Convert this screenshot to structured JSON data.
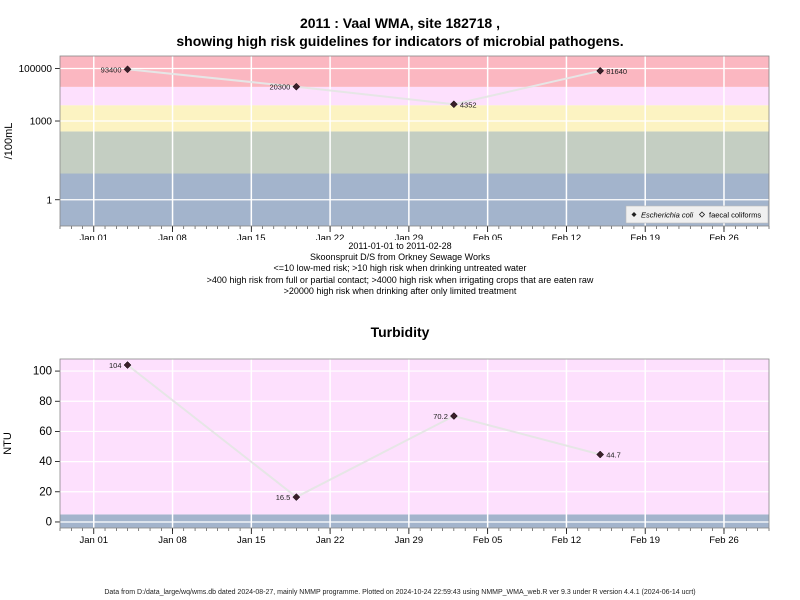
{
  "title": {
    "line1": "2011 : Vaal WMA, site 182718 ,",
    "line2": "showing high risk guidelines for indicators of microbial pathogens."
  },
  "info": {
    "date_range": "2011-01-01 to 2011-02-28",
    "site_name": "Skoonspruit D/S from Orkney Sewage Works",
    "risk_lines": [
      "<=10 low-med risk; >10 high risk when drinking untreated water",
      ">400 high risk from full or partial contact; >4000 high risk when irrigating crops that are eaten raw",
      ">20000 high risk when drinking after only limited treatment"
    ]
  },
  "footer": "Data from D:/data_large/wq/wms.db dated 2024-08-27, mainly NMMP programme. Plotted on 2024-10-24 22:59:43 using NMMP_WMA_web.R ver 9.3 under R version 4.4.1 (2024-06-14 ucrt)",
  "colors": {
    "grey_blue": "#a3b4cc",
    "grey_green": "#c4cec2",
    "yellow": "#fcf3c2",
    "pink_light": "#fde0fd",
    "red": "#fbb7c1",
    "line": "#e6e6e6",
    "grid": "#ffffff"
  },
  "chart_data": [
    {
      "type": "line",
      "title": "",
      "xlabel": "",
      "ylabel": "/100mL",
      "y_scale": "log10",
      "ylim": [
        0.1,
        300000
      ],
      "xlim": [
        "2010-12-29",
        "2011-03-02"
      ],
      "x_ticks": [
        "Jan 01",
        "Jan 08",
        "Jan 15",
        "Jan 22",
        "Jan 29",
        "Feb 05",
        "Feb 12",
        "Feb 19",
        "Feb 26"
      ],
      "y_ticks": [
        "1",
        "1000",
        "100000"
      ],
      "risk_bands": [
        {
          "from": 0.1,
          "to": 10,
          "color": "grey_blue"
        },
        {
          "from": 10,
          "to": 400,
          "color": "grey_green"
        },
        {
          "from": 400,
          "to": 4000,
          "color": "yellow"
        },
        {
          "from": 4000,
          "to": 20000,
          "color": "pink_light"
        },
        {
          "from": 20000,
          "to": 300000,
          "color": "red"
        }
      ],
      "legend_position": "bottom-right",
      "legend": [
        "Escherichia coli",
        "faecal coliforms"
      ],
      "series": [
        {
          "name": "Escherichia coli",
          "x": [
            "2011-01-04",
            "2011-01-19",
            "2011-02-02",
            "2011-02-15"
          ],
          "values": [
            93400,
            20300,
            4352,
            81640
          ],
          "labels": [
            "93400",
            "20300",
            "4352",
            "81640"
          ],
          "label_side": [
            "left",
            "left",
            "right",
            "right"
          ]
        }
      ]
    },
    {
      "type": "line",
      "title": "Turbidity",
      "xlabel": "",
      "ylabel": "NTU",
      "ylim": [
        -4,
        108
      ],
      "xlim": [
        "2010-12-29",
        "2011-03-02"
      ],
      "x_ticks": [
        "Jan 01",
        "Jan 08",
        "Jan 15",
        "Jan 22",
        "Jan 29",
        "Feb 05",
        "Feb 12",
        "Feb 19",
        "Feb 26"
      ],
      "y_ticks": [
        "0",
        "20",
        "40",
        "60",
        "80",
        "100"
      ],
      "risk_bands": [
        {
          "from": -4,
          "to": 5,
          "color": "grey_blue"
        },
        {
          "from": 5,
          "to": 108,
          "color": "pink_light"
        }
      ],
      "series": [
        {
          "name": "",
          "x": [
            "2011-01-04",
            "2011-01-19",
            "2011-02-02",
            "2011-02-15"
          ],
          "values": [
            104,
            16.5,
            70.2,
            44.7
          ],
          "labels": [
            "104",
            "16.5",
            "70.2",
            "44.7"
          ],
          "label_side": [
            "left",
            "left",
            "left",
            "right"
          ]
        }
      ]
    }
  ]
}
